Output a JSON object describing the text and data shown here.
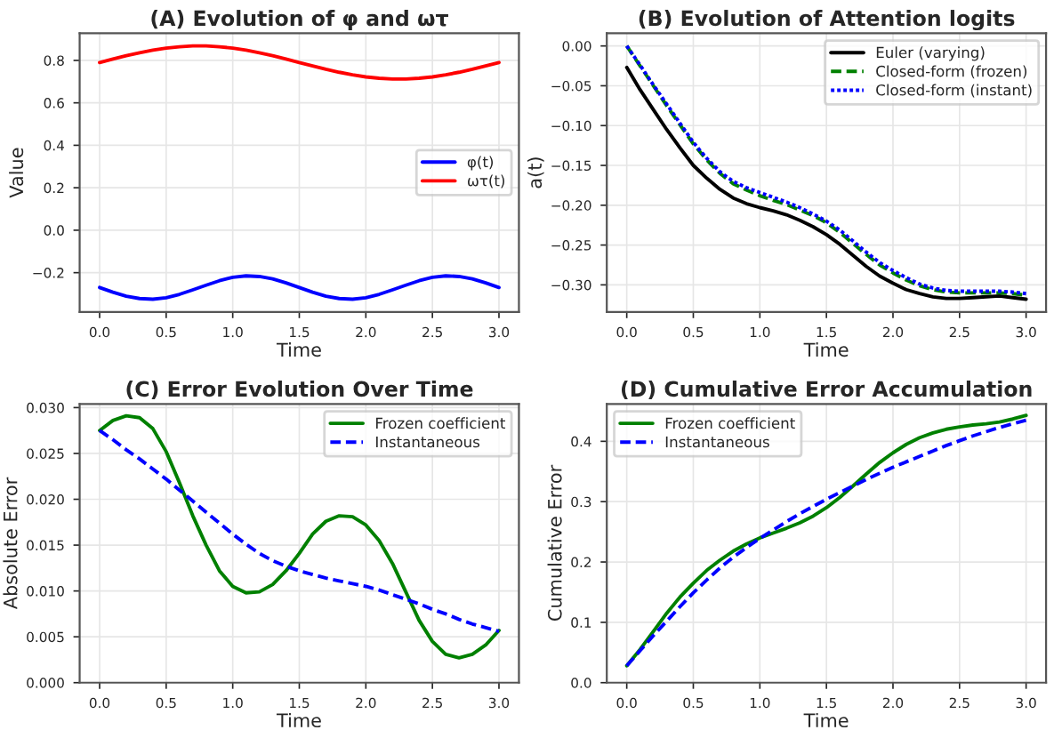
{
  "chart_data": [
    {
      "type": "line",
      "title": "(A) Evolution of φ and ωτ",
      "xlabel": "Time",
      "ylabel": "Value",
      "grid": true,
      "legend": "right",
      "x": [
        0,
        0.1,
        0.2,
        0.3,
        0.4,
        0.5,
        0.6,
        0.7,
        0.8,
        0.9,
        1.0,
        1.1,
        1.2,
        1.3,
        1.4,
        1.5,
        1.6,
        1.7,
        1.8,
        1.9,
        2.0,
        2.1,
        2.2,
        2.3,
        2.4,
        2.5,
        2.6,
        2.7,
        2.8,
        2.9,
        3.0
      ],
      "series": [
        {
          "name": "φ(t)",
          "color": "#0000ff",
          "line_style": "solid",
          "values": [
            -0.27,
            -0.292,
            -0.311,
            -0.322,
            -0.325,
            -0.318,
            -0.302,
            -0.281,
            -0.259,
            -0.238,
            -0.222,
            -0.215,
            -0.218,
            -0.229,
            -0.248,
            -0.27,
            -0.292,
            -0.311,
            -0.322,
            -0.325,
            -0.318,
            -0.302,
            -0.281,
            -0.259,
            -0.238,
            -0.222,
            -0.215,
            -0.218,
            -0.229,
            -0.248,
            -0.27
          ]
        },
        {
          "name": "ωτ(t)",
          "color": "#ff0000",
          "line_style": "solid",
          "values": [
            0.79,
            0.806,
            0.822,
            0.836,
            0.848,
            0.858,
            0.864,
            0.868,
            0.868,
            0.864,
            0.858,
            0.848,
            0.836,
            0.822,
            0.806,
            0.79,
            0.774,
            0.758,
            0.744,
            0.732,
            0.722,
            0.716,
            0.712,
            0.712,
            0.716,
            0.722,
            0.732,
            0.744,
            0.758,
            0.774,
            0.79
          ]
        }
      ],
      "xlim": [
        -0.15,
        3.15
      ],
      "ylim": [
        -0.385,
        0.928
      ],
      "xticks": [
        {
          "value": 0,
          "label": "0.0"
        },
        {
          "value": 0.5,
          "label": "0.5"
        },
        {
          "value": 1,
          "label": "1.0"
        },
        {
          "value": 1.5,
          "label": "1.5"
        },
        {
          "value": 2,
          "label": "2.0"
        },
        {
          "value": 2.5,
          "label": "2.5"
        },
        {
          "value": 3,
          "label": "3.0"
        }
      ],
      "yticks": [
        {
          "value": -0.2,
          "label": "−0.2"
        },
        {
          "value": 0,
          "label": "0.0"
        },
        {
          "value": 0.2,
          "label": "0.2"
        },
        {
          "value": 0.4,
          "label": "0.4"
        },
        {
          "value": 0.6,
          "label": "0.6"
        },
        {
          "value": 0.8,
          "label": "0.8"
        }
      ]
    },
    {
      "type": "line",
      "title": "(B) Evolution of Attention logits",
      "xlabel": "Time",
      "ylabel": "a(t)",
      "grid": true,
      "legend": "top right",
      "x": [
        0,
        0.1,
        0.2,
        0.3,
        0.4,
        0.5,
        0.6,
        0.7,
        0.8,
        0.9,
        1.0,
        1.1,
        1.2,
        1.3,
        1.4,
        1.5,
        1.6,
        1.7,
        1.8,
        1.9,
        2.0,
        2.1,
        2.2,
        2.3,
        2.4,
        2.5,
        2.6,
        2.7,
        2.8,
        2.9,
        3.0
      ],
      "series": [
        {
          "name": "Euler (varying)",
          "color": "#000000",
          "line_style": "solid",
          "values": [
            -0.027,
            -0.055,
            -0.08,
            -0.105,
            -0.128,
            -0.15,
            -0.166,
            -0.18,
            -0.191,
            -0.198,
            -0.203,
            -0.207,
            -0.212,
            -0.219,
            -0.227,
            -0.237,
            -0.249,
            -0.263,
            -0.277,
            -0.289,
            -0.298,
            -0.306,
            -0.311,
            -0.315,
            -0.317,
            -0.317,
            -0.316,
            -0.315,
            -0.314,
            -0.316,
            -0.318
          ]
        },
        {
          "name": "Closed-form (frozen)",
          "color": "#008000",
          "line_style": "dashed",
          "values": [
            0,
            -0.025,
            -0.05,
            -0.075,
            -0.099,
            -0.123,
            -0.143,
            -0.16,
            -0.173,
            -0.181,
            -0.188,
            -0.194,
            -0.199,
            -0.206,
            -0.213,
            -0.222,
            -0.234,
            -0.248,
            -0.262,
            -0.275,
            -0.285,
            -0.294,
            -0.301,
            -0.306,
            -0.309,
            -0.31,
            -0.31,
            -0.31,
            -0.31,
            -0.311,
            -0.313
          ]
        },
        {
          "name": "Closed-form (instant)",
          "color": "#0000ff",
          "line_style": "dotted",
          "values": [
            0,
            -0.024,
            -0.049,
            -0.073,
            -0.097,
            -0.121,
            -0.141,
            -0.158,
            -0.17,
            -0.178,
            -0.184,
            -0.19,
            -0.196,
            -0.203,
            -0.211,
            -0.22,
            -0.231,
            -0.245,
            -0.259,
            -0.272,
            -0.282,
            -0.291,
            -0.299,
            -0.304,
            -0.307,
            -0.308,
            -0.308,
            -0.308,
            -0.308,
            -0.309,
            -0.311
          ]
        }
      ],
      "xlim": [
        -0.15,
        3.15
      ],
      "ylim": [
        -0.334,
        0.016
      ],
      "xticks": [
        {
          "value": 0,
          "label": "0.0"
        },
        {
          "value": 0.5,
          "label": "0.5"
        },
        {
          "value": 1,
          "label": "1.0"
        },
        {
          "value": 1.5,
          "label": "1.5"
        },
        {
          "value": 2,
          "label": "2.0"
        },
        {
          "value": 2.5,
          "label": "2.5"
        },
        {
          "value": 3,
          "label": "3.0"
        }
      ],
      "yticks": [
        {
          "value": -0.3,
          "label": "−0.30"
        },
        {
          "value": -0.25,
          "label": "−0.25"
        },
        {
          "value": -0.2,
          "label": "−0.20"
        },
        {
          "value": -0.15,
          "label": "−0.15"
        },
        {
          "value": -0.1,
          "label": "−0.10"
        },
        {
          "value": -0.05,
          "label": "−0.05"
        },
        {
          "value": 0,
          "label": "0.00"
        }
      ]
    },
    {
      "type": "line",
      "title": "(C) Error Evolution Over Time",
      "xlabel": "Time",
      "ylabel": "Absolute Error",
      "grid": true,
      "legend": "top right",
      "x": [
        0,
        0.1,
        0.2,
        0.3,
        0.4,
        0.5,
        0.6,
        0.7,
        0.8,
        0.9,
        1.0,
        1.1,
        1.2,
        1.3,
        1.4,
        1.5,
        1.6,
        1.7,
        1.8,
        1.9,
        2.0,
        2.1,
        2.2,
        2.3,
        2.4,
        2.5,
        2.6,
        2.7,
        2.8,
        2.9,
        3.0
      ],
      "series": [
        {
          "name": "Frozen coefficient",
          "color": "#008000",
          "line_style": "solid",
          "values": [
            0.0275,
            0.0286,
            0.0291,
            0.0289,
            0.0277,
            0.0252,
            0.0218,
            0.0182,
            0.015,
            0.0122,
            0.0105,
            0.0098,
            0.0099,
            0.0107,
            0.0122,
            0.0141,
            0.0162,
            0.0176,
            0.0182,
            0.0181,
            0.0172,
            0.0155,
            0.013,
            0.0099,
            0.0068,
            0.0045,
            0.0031,
            0.0027,
            0.0031,
            0.0041,
            0.0057
          ]
        },
        {
          "name": "Instantaneous",
          "color": "#0000ff",
          "line_style": "dashed",
          "values": [
            0.0275,
            0.0265,
            0.0254,
            0.0244,
            0.0233,
            0.0222,
            0.021,
            0.0198,
            0.0186,
            0.0174,
            0.0162,
            0.0151,
            0.0141,
            0.0133,
            0.0127,
            0.0122,
            0.0118,
            0.0114,
            0.0111,
            0.0108,
            0.0105,
            0.0101,
            0.0096,
            0.0091,
            0.0086,
            0.008,
            0.0075,
            0.0069,
            0.0064,
            0.006,
            0.0056
          ]
        }
      ],
      "xlim": [
        -0.15,
        3.15
      ],
      "ylim": [
        0,
        0.0304
      ],
      "xticks": [
        {
          "value": 0,
          "label": "0.0"
        },
        {
          "value": 0.5,
          "label": "0.5"
        },
        {
          "value": 1,
          "label": "1.0"
        },
        {
          "value": 1.5,
          "label": "1.5"
        },
        {
          "value": 2,
          "label": "2.0"
        },
        {
          "value": 2.5,
          "label": "2.5"
        },
        {
          "value": 3,
          "label": "3.0"
        }
      ],
      "yticks": [
        {
          "value": 0,
          "label": "0.000"
        },
        {
          "value": 0.005,
          "label": "0.005"
        },
        {
          "value": 0.01,
          "label": "0.010"
        },
        {
          "value": 0.015,
          "label": "0.015"
        },
        {
          "value": 0.02,
          "label": "0.020"
        },
        {
          "value": 0.025,
          "label": "0.025"
        },
        {
          "value": 0.03,
          "label": "0.030"
        }
      ]
    },
    {
      "type": "line",
      "title": "(D) Cumulative Error Accumulation",
      "xlabel": "Time",
      "ylabel": "Cumulative Error",
      "grid": true,
      "legend": "top left",
      "x": [
        0,
        0.1,
        0.2,
        0.3,
        0.4,
        0.5,
        0.6,
        0.7,
        0.8,
        0.9,
        1.0,
        1.1,
        1.2,
        1.3,
        1.4,
        1.5,
        1.6,
        1.7,
        1.8,
        1.9,
        2.0,
        2.1,
        2.2,
        2.3,
        2.4,
        2.5,
        2.6,
        2.7,
        2.8,
        2.9,
        3.0
      ],
      "series": [
        {
          "name": "Frozen coefficient",
          "color": "#008000",
          "line_style": "solid",
          "values": [
            0.028,
            0.055,
            0.085,
            0.115,
            0.142,
            0.165,
            0.186,
            0.203,
            0.218,
            0.23,
            0.24,
            0.248,
            0.256,
            0.265,
            0.276,
            0.29,
            0.307,
            0.326,
            0.346,
            0.365,
            0.381,
            0.395,
            0.406,
            0.414,
            0.42,
            0.424,
            0.427,
            0.429,
            0.432,
            0.437,
            0.443
          ]
        },
        {
          "name": "Instantaneous",
          "color": "#0000ff",
          "line_style": "dashed",
          "values": [
            0.028,
            0.053,
            0.078,
            0.102,
            0.126,
            0.149,
            0.17,
            0.19,
            0.208,
            0.224,
            0.239,
            0.253,
            0.267,
            0.28,
            0.292,
            0.304,
            0.315,
            0.326,
            0.337,
            0.347,
            0.357,
            0.366,
            0.375,
            0.384,
            0.393,
            0.401,
            0.409,
            0.416,
            0.423,
            0.429,
            0.435
          ]
        }
      ],
      "xlim": [
        -0.15,
        3.15
      ],
      "ylim": [
        0,
        0.462
      ],
      "xticks": [
        {
          "value": 0,
          "label": "0.0"
        },
        {
          "value": 0.5,
          "label": "0.5"
        },
        {
          "value": 1,
          "label": "1.0"
        },
        {
          "value": 1.5,
          "label": "1.5"
        },
        {
          "value": 2,
          "label": "2.0"
        },
        {
          "value": 2.5,
          "label": "2.5"
        },
        {
          "value": 3,
          "label": "3.0"
        }
      ],
      "yticks": [
        {
          "value": 0,
          "label": "0.0"
        },
        {
          "value": 0.1,
          "label": "0.1"
        },
        {
          "value": 0.2,
          "label": "0.2"
        },
        {
          "value": 0.3,
          "label": "0.3"
        },
        {
          "value": 0.4,
          "label": "0.4"
        }
      ]
    }
  ]
}
